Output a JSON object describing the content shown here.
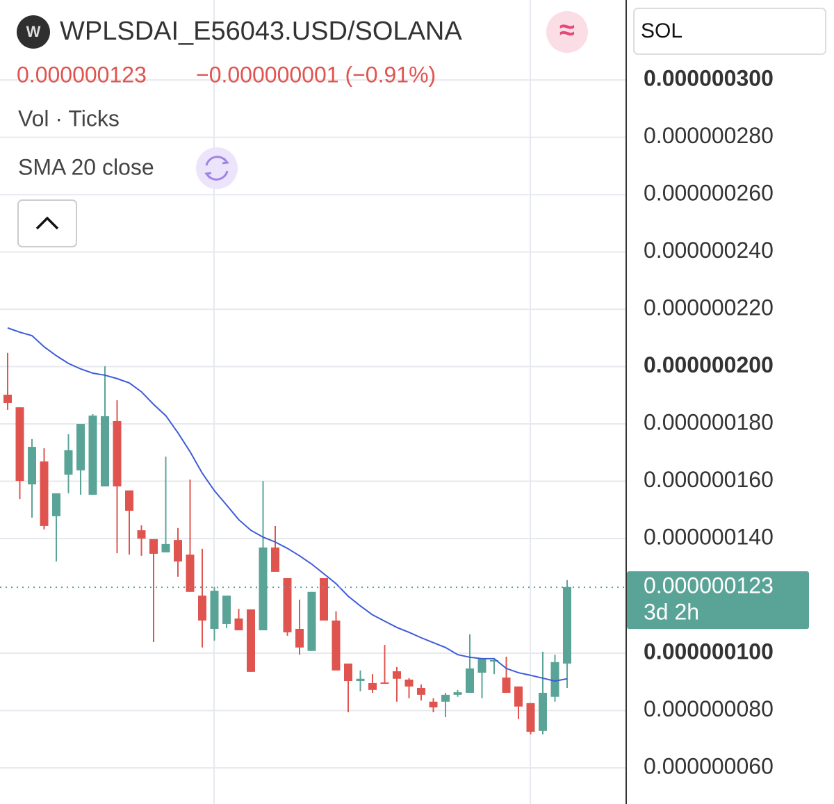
{
  "header": {
    "logo": "W",
    "symbol": "WPLSDAI_E56043.USD/SOLANA",
    "price": "0.000000123",
    "change": "−0.000000001 (−0.91%)",
    "volume_label": "Vol · Ticks",
    "indicator": "SMA 20 close",
    "currency": "SOL"
  },
  "chart_data": {
    "type": "candlestick",
    "ylim": [
      4.74e-08,
      3.279e-07
    ],
    "yticks": [
      {
        "value": 3e-07,
        "label": "0.000000300"
      },
      {
        "value": 2.8e-07,
        "label": "0.000000280"
      },
      {
        "value": 2.6e-07,
        "label": "0.000000260"
      },
      {
        "value": 2.4e-07,
        "label": "0.000000240"
      },
      {
        "value": 2.2e-07,
        "label": "0.000000220"
      },
      {
        "value": 2e-07,
        "label": "0.000000200"
      },
      {
        "value": 1.8e-07,
        "label": "0.000000180"
      },
      {
        "value": 1.6e-07,
        "label": "0.000000160"
      },
      {
        "value": 1.4e-07,
        "label": "0.000000140"
      },
      {
        "value": 1e-07,
        "label": "0.000000100"
      },
      {
        "value": 8e-08,
        "label": "0.000000080"
      },
      {
        "value": 6e-08,
        "label": "0.000000060"
      }
    ],
    "grid": true,
    "up_color": "#5aa497",
    "down_color": "#e0544f",
    "open": [
      1.902e-07,
      1.858e-07,
      1.589e-07,
      1.669e-07,
      1.478e-07,
      1.623e-07,
      1.638e-07,
      1.553e-07,
      1.582e-07,
      1.81e-07,
      1.568e-07,
      1.429e-07,
      1.398e-07,
      1.352e-07,
      1.395e-07,
      1.344e-07,
      1.201e-07,
      1.085e-07,
      1.102e-07,
      1.121e-07,
      1.153e-07,
      1.08e-07,
      1.369e-07,
      1.262e-07,
      1.085e-07,
      1.008e-07,
      1.262e-07,
      1.114e-07,
      9.64e-08,
      9.03e-08,
      8.96e-08,
      8.98e-08,
      9.37e-08,
      9.08e-08,
      8.79e-08,
      8.31e-08,
      8.31e-08,
      8.55e-08,
      8.62e-08,
      9.32e-08,
      9.71e-08,
      9.15e-08,
      8.84e-08,
      8.26e-08,
      7.29e-08,
      8.48e-08,
      9.64e-08
    ],
    "high": [
      2.048e-07,
      1.858e-07,
      1.747e-07,
      1.715e-07,
      1.558e-07,
      1.764e-07,
      1.8e-07,
      1.834e-07,
      2.001e-07,
      1.883e-07,
      1.568e-07,
      1.446e-07,
      1.398e-07,
      1.686e-07,
      1.437e-07,
      1.606e-07,
      1.364e-07,
      1.231e-07,
      1.201e-07,
      1.155e-07,
      1.153e-07,
      1.601e-07,
      1.444e-07,
      1.262e-07,
      1.187e-07,
      1.214e-07,
      1.262e-07,
      1.146e-07,
      9.64e-08,
      9.4e-08,
      9.27e-08,
      1.029e-07,
      9.52e-08,
      9.13e-08,
      8.91e-08,
      8.43e-08,
      8.62e-08,
      8.72e-08,
      1.066e-07,
      9.81e-08,
      9.81e-08,
      9.88e-08,
      8.84e-08,
      8.26e-08,
      1.005e-07,
      9.95e-08,
      1.255e-07
    ],
    "low": [
      1.849e-07,
      1.538e-07,
      1.473e-07,
      1.432e-07,
      1.32e-07,
      1.558e-07,
      1.553e-07,
      1.553e-07,
      1.582e-07,
      1.349e-07,
      1.344e-07,
      1.34e-07,
      1.039e-07,
      1.352e-07,
      1.267e-07,
      1.214e-07,
      1.02e-07,
      1.044e-07,
      1.088e-07,
      1.08e-07,
      9.35e-08,
      1.08e-07,
      1.284e-07,
      1.061e-07,
      9.95e-08,
      1.008e-07,
      1.114e-07,
      9.4e-08,
      7.94e-08,
      8.67e-08,
      8.62e-08,
      8.94e-08,
      8.31e-08,
      8.43e-08,
      8.35e-08,
      7.94e-08,
      7.77e-08,
      8.48e-08,
      8.62e-08,
      8.43e-08,
      9.27e-08,
      8.62e-08,
      7.7e-08,
      7.17e-08,
      7.17e-08,
      8.31e-08,
      8.79e-08
    ],
    "close": [
      1.873e-07,
      1.601e-07,
      1.72e-07,
      1.444e-07,
      1.558e-07,
      1.708e-07,
      1.8e-07,
      1.829e-07,
      1.827e-07,
      1.582e-07,
      1.497e-07,
      1.4e-07,
      1.347e-07,
      1.381e-07,
      1.32e-07,
      1.214e-07,
      1.114e-07,
      1.218e-07,
      1.201e-07,
      1.08e-07,
      9.35e-08,
      1.369e-07,
      1.284e-07,
      1.073e-07,
      1.02e-07,
      1.214e-07,
      1.114e-07,
      9.4e-08,
      9.03e-08,
      9.11e-08,
      8.72e-08,
      8.94e-08,
      9.11e-08,
      8.84e-08,
      8.55e-08,
      8.11e-08,
      8.55e-08,
      8.64e-08,
      9.47e-08,
      9.81e-08,
      9.76e-08,
      8.62e-08,
      8.14e-08,
      7.26e-08,
      8.62e-08,
      9.69e-08,
      1.231e-07
    ],
    "sma": {
      "name": "SMA 20 close",
      "color": "#3d5bd9",
      "values": [
        2.135e-07,
        2.12e-07,
        2.108e-07,
        2.069e-07,
        2.038e-07,
        2.011e-07,
        1.992e-07,
        1.977e-07,
        1.97e-07,
        1.958e-07,
        1.943e-07,
        1.912e-07,
        1.868e-07,
        1.829e-07,
        1.769e-07,
        1.703e-07,
        1.628e-07,
        1.567e-07,
        1.517e-07,
        1.466e-07,
        1.429e-07,
        1.405e-07,
        1.388e-07,
        1.366e-07,
        1.34e-07,
        1.311e-07,
        1.277e-07,
        1.243e-07,
        1.199e-07,
        1.165e-07,
        1.134e-07,
        1.112e-07,
        1.09e-07,
        1.073e-07,
        1.054e-07,
        1.037e-07,
        1.02e-07,
        9.95e-08,
        9.86e-08,
        9.81e-08,
        9.81e-08,
        9.47e-08,
        9.32e-08,
        9.23e-08,
        9.13e-08,
        9.03e-08,
        9.11e-08
      ]
    },
    "last_price": {
      "value": 1.23e-07,
      "label": "0.000000123",
      "countdown": "3d 2h"
    }
  }
}
